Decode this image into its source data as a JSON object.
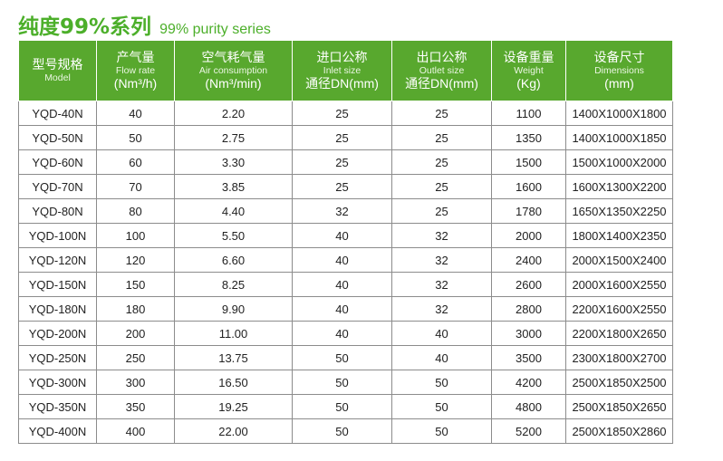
{
  "title": {
    "cn": "纯度99%系列",
    "en": "99% purity series"
  },
  "colors": {
    "accent": "#4caf2a",
    "header_bg": "#58a82e",
    "grid": "#8c8c8c"
  },
  "table": {
    "headers": [
      {
        "cn": "型号规格",
        "en": "Model",
        "unit": ""
      },
      {
        "cn": "产气量",
        "en": "Flow rate",
        "unit": "(Nm³/h)"
      },
      {
        "cn": "空气耗气量",
        "en": "Air consumption",
        "unit": "(Nm³/min)"
      },
      {
        "cn": "进口公称",
        "en": "Inlet size",
        "unit": "通径DN(mm)"
      },
      {
        "cn": "出口公称",
        "en": "Outlet size",
        "unit": "通径DN(mm)"
      },
      {
        "cn": "设备重量",
        "en": "Weight",
        "unit": "(Kg)"
      },
      {
        "cn": "设备尺寸",
        "en": "Dimensions",
        "unit": "(mm)"
      }
    ],
    "rows": [
      [
        "YQD-40N",
        "40",
        "2.20",
        "25",
        "25",
        "1100",
        "1400X1000X1800"
      ],
      [
        "YQD-50N",
        "50",
        "2.75",
        "25",
        "25",
        "1350",
        "1400X1000X1850"
      ],
      [
        "YQD-60N",
        "60",
        "3.30",
        "25",
        "25",
        "1500",
        "1500X1000X2000"
      ],
      [
        "YQD-70N",
        "70",
        "3.85",
        "25",
        "25",
        "1600",
        "1600X1300X2200"
      ],
      [
        "YQD-80N",
        "80",
        "4.40",
        "32",
        "25",
        "1780",
        "1650X1350X2250"
      ],
      [
        "YQD-100N",
        "100",
        "5.50",
        "40",
        "32",
        "2000",
        "1800X1400X2350"
      ],
      [
        "YQD-120N",
        "120",
        "6.60",
        "40",
        "32",
        "2400",
        "2000X1500X2400"
      ],
      [
        "YQD-150N",
        "150",
        "8.25",
        "40",
        "32",
        "2600",
        "2000X1600X2550"
      ],
      [
        "YQD-180N",
        "180",
        "9.90",
        "40",
        "32",
        "2800",
        "2200X1600X2550"
      ],
      [
        "YQD-200N",
        "200",
        "11.00",
        "40",
        "40",
        "3000",
        "2200X1800X2650"
      ],
      [
        "YQD-250N",
        "250",
        "13.75",
        "50",
        "40",
        "3500",
        "2300X1800X2700"
      ],
      [
        "YQD-300N",
        "300",
        "16.50",
        "50",
        "50",
        "4200",
        "2500X1850X2500"
      ],
      [
        "YQD-350N",
        "350",
        "19.25",
        "50",
        "50",
        "4800",
        "2500X1850X2650"
      ],
      [
        "YQD-400N",
        "400",
        "22.00",
        "50",
        "50",
        "5200",
        "2500X1850X2860"
      ]
    ]
  }
}
